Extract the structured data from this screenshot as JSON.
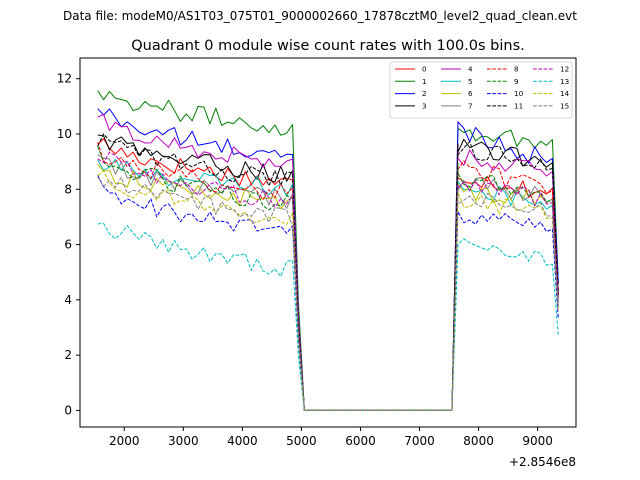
{
  "suptitle": "Data file: modeM0/AS1T03_075T01_9000002660_17878cztM0_level2_quad_clean.evt",
  "chart_data": {
    "type": "line",
    "title": "Quadrant 0 module wise count rates with 100.0s bins.",
    "xlabel": "",
    "ylabel": "",
    "x_offset_label": "+2.8546e8",
    "xlim": [
      1250,
      9650
    ],
    "ylim": [
      -0.6,
      12.75
    ],
    "xticks": [
      2000,
      3000,
      4000,
      5000,
      6000,
      7000,
      8000,
      9000
    ],
    "yticks": [
      0,
      2,
      4,
      6,
      8,
      10,
      12
    ],
    "xtick_labels": [
      "2000",
      "3000",
      "4000",
      "5000",
      "6000",
      "7000",
      "8000",
      "9000"
    ],
    "ytick_labels": [
      "0",
      "2",
      "4",
      "6",
      "8",
      "10",
      "12"
    ],
    "legend_position": "top-right",
    "legend_columns": 4,
    "segments": [
      {
        "start": 1550,
        "end": 4850,
        "step": 100
      },
      {
        "start": 7550,
        "end": 9350,
        "step": 100
      }
    ],
    "drop_x": [
      4950,
      5050
    ],
    "gap_x": [
      5050,
      7550
    ],
    "series": [
      {
        "name": "0",
        "color": "#ff0000",
        "dash": "solid",
        "base1": 9.8,
        "end1": 8.2,
        "base2": 8.6,
        "end2": 7.8,
        "last": 4.3
      },
      {
        "name": "1",
        "color": "#008000",
        "dash": "solid",
        "base1": 11.7,
        "end1": 10.2,
        "base2": 10.2,
        "end2": 9.6,
        "last": 4.6
      },
      {
        "name": "2",
        "color": "#0000ff",
        "dash": "solid",
        "base1": 11.0,
        "end1": 9.1,
        "base2": 10.3,
        "end2": 8.9,
        "last": 4.6
      },
      {
        "name": "3",
        "color": "#000000",
        "dash": "solid",
        "base1": 10.0,
        "end1": 8.5,
        "base2": 9.7,
        "end2": 8.8,
        "last": 4.2
      },
      {
        "name": "4",
        "color": "#bf00bf",
        "dash": "solid",
        "base1": 10.6,
        "end1": 8.9,
        "base2": 9.3,
        "end2": 8.5,
        "last": 4.1
      },
      {
        "name": "5",
        "color": "#00bfbf",
        "dash": "solid",
        "base1": 9.0,
        "end1": 8.0,
        "base2": 8.3,
        "end2": 7.3,
        "last": 3.9
      },
      {
        "name": "6",
        "color": "#bfbf00",
        "dash": "solid",
        "base1": 8.8,
        "end1": 7.5,
        "base2": 8.0,
        "end2": 7.6,
        "last": 3.7
      },
      {
        "name": "7",
        "color": "#808080",
        "dash": "solid",
        "base1": 9.1,
        "end1": 7.6,
        "base2": 8.3,
        "end2": 7.6,
        "last": 3.8
      },
      {
        "name": "8",
        "color": "#ff0000",
        "dash": "dashed",
        "base1": 9.5,
        "end1": 7.8,
        "base2": 8.9,
        "end2": 7.9,
        "last": 4.1
      },
      {
        "name": "9",
        "color": "#008000",
        "dash": "dashed",
        "base1": 9.3,
        "end1": 7.4,
        "base2": 8.6,
        "end2": 7.6,
        "last": 4.0
      },
      {
        "name": "10",
        "color": "#0000ff",
        "dash": "dashed",
        "base1": 8.2,
        "end1": 6.4,
        "base2": 7.0,
        "end2": 6.6,
        "last": 3.3
      },
      {
        "name": "11",
        "color": "#000000",
        "dash": "dashed",
        "base1": 9.9,
        "end1": 8.3,
        "base2": 9.6,
        "end2": 8.8,
        "last": 4.2
      },
      {
        "name": "12",
        "color": "#bf00bf",
        "dash": "dashed",
        "base1": 9.4,
        "end1": 7.5,
        "base2": 8.2,
        "end2": 7.6,
        "last": 3.9
      },
      {
        "name": "13",
        "color": "#00bfbf",
        "dash": "dashed",
        "base1": 7.0,
        "end1": 5.1,
        "base2": 6.0,
        "end2": 5.4,
        "last": 2.7
      },
      {
        "name": "14",
        "color": "#bfbf00",
        "dash": "dashed",
        "base1": 8.7,
        "end1": 6.8,
        "base2": 7.7,
        "end2": 7.1,
        "last": 3.6
      },
      {
        "name": "15",
        "color": "#808080",
        "dash": "dashed",
        "base1": 8.6,
        "end1": 7.0,
        "base2": 7.8,
        "end2": 7.2,
        "last": 3.7
      }
    ]
  }
}
